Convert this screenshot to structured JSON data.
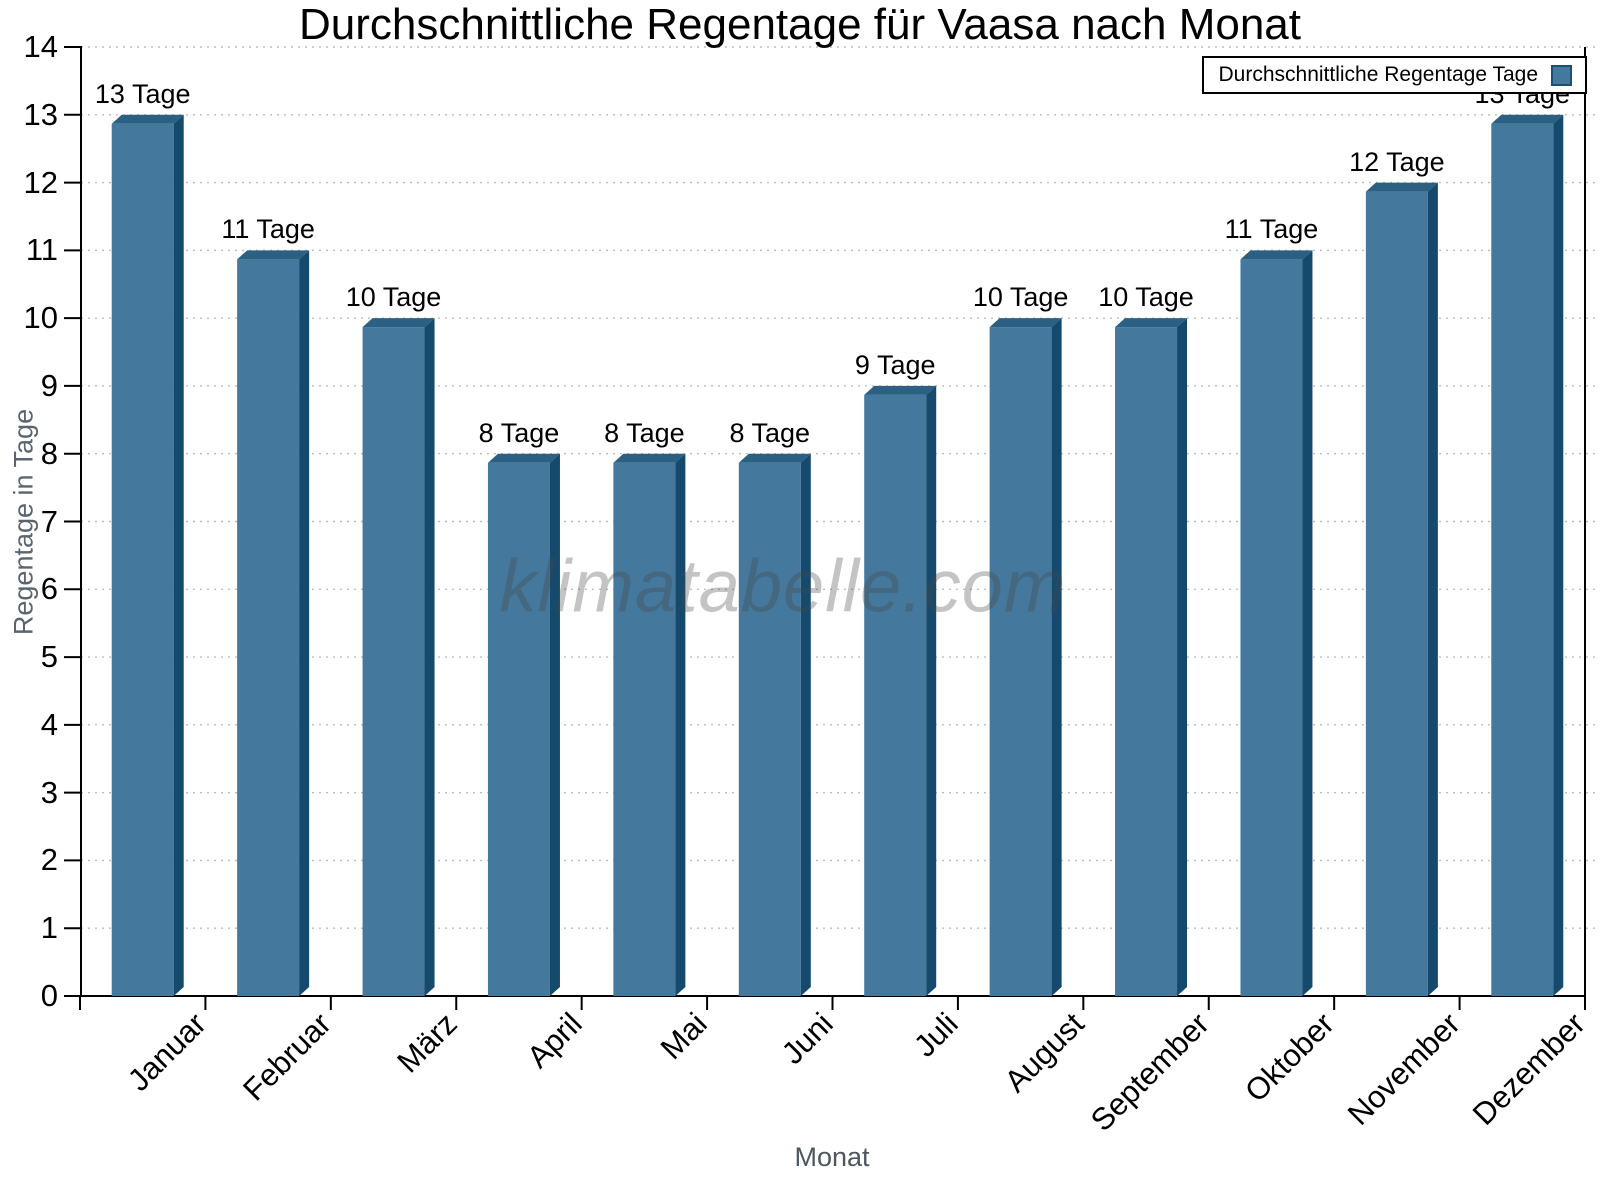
{
  "title": "Durchschnittliche Regentage für Vaasa nach Monat",
  "legend": {
    "label": "Durchschnittliche Regentage Tage",
    "position": "top-right"
  },
  "watermark": "klimatabelle.com",
  "colors": {
    "bar_front": "#44789c",
    "bar_top": "#2b6083",
    "bar_side": "#154a6c",
    "axis": "#000000",
    "grid": "#bdbdbd",
    "tick_text": "#000000",
    "axis_title_text": "#4d5760",
    "swatch_border": "#1b5070"
  },
  "chart_data": {
    "type": "bar",
    "title": "Durchschnittliche Regentage für Vaasa nach Monat",
    "categories": [
      "Januar",
      "Februar",
      "März",
      "April",
      "Mai",
      "Juni",
      "Juli",
      "August",
      "September",
      "Oktober",
      "November",
      "Dezember"
    ],
    "values": [
      13,
      11,
      10,
      8,
      8,
      8,
      9,
      10,
      10,
      11,
      12,
      13
    ],
    "bar_labels": [
      "13 Tage",
      "11 Tage",
      "10 Tage",
      "8 Tage",
      "8 Tage",
      "8 Tage",
      "9 Tage",
      "10 Tage",
      "10 Tage",
      "11 Tage",
      "12 Tage",
      "13 Tage"
    ],
    "value_label_suffix": " Tage",
    "xlabel": "Monat",
    "ylabel": "Regentage in Tage",
    "ylim": [
      0,
      14
    ],
    "ytick_step": 1,
    "yticks": [
      0,
      1,
      2,
      3,
      4,
      5,
      6,
      7,
      8,
      9,
      10,
      11,
      12,
      13,
      14
    ],
    "grid": "horizontal-dotted",
    "legend_position": "top-right",
    "series": [
      {
        "name": "Durchschnittliche Regentage Tage",
        "values": [
          13,
          11,
          10,
          8,
          8,
          8,
          9,
          10,
          10,
          11,
          12,
          13
        ]
      }
    ]
  }
}
